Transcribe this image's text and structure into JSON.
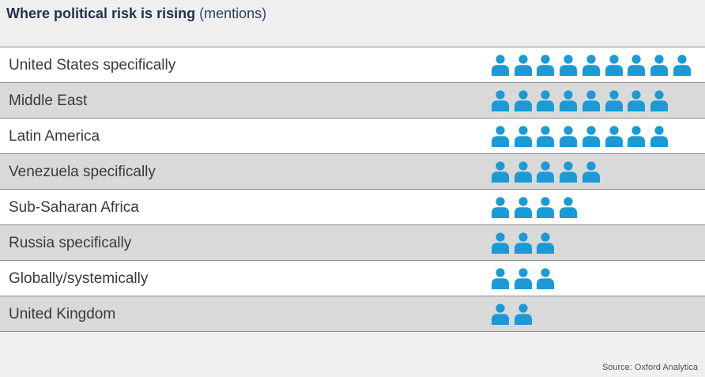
{
  "chart_data": {
    "type": "pictograph",
    "title": "Where political risk is rising",
    "unit_label": "(mentions)",
    "categories": [
      "United States specifically",
      "Middle East",
      "Latin America",
      "Venezuela specifically",
      "Sub-Saharan Africa",
      "Russia specifically",
      "Globally/systemically",
      "United Kingdom"
    ],
    "values": [
      9,
      8,
      8,
      5,
      4,
      3,
      3,
      2
    ],
    "icon": "person-icon",
    "icon_color": "#1b9ad6",
    "row_colors": [
      "#ffffff",
      "#d9d9d9"
    ],
    "source": "Source: Oxford Analytica"
  }
}
